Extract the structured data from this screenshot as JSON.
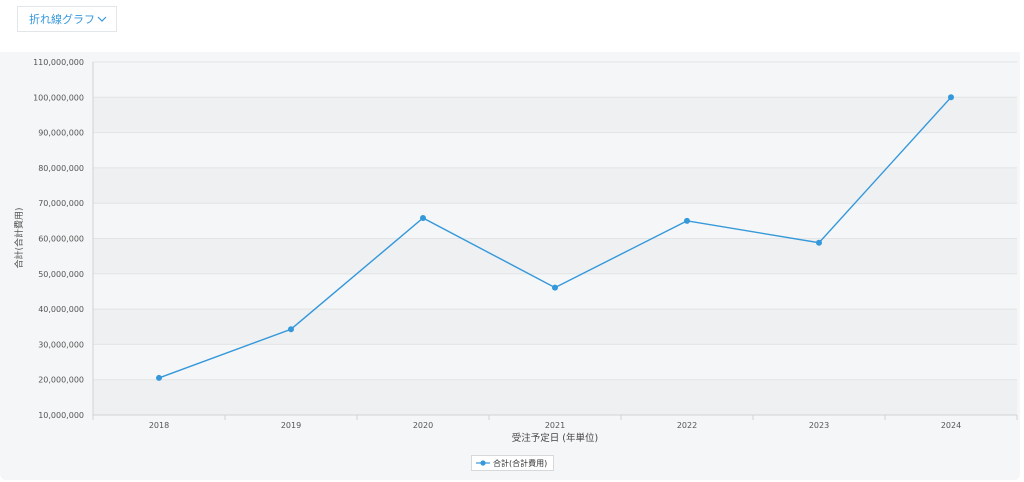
{
  "toolbar": {
    "chart_type_label": "折れ線グラフ"
  },
  "colors": {
    "accent": "#3498db",
    "band": "#eef0f2",
    "panel": "#f5f6f7"
  },
  "chart_data": {
    "type": "line",
    "categories": [
      "2018",
      "2019",
      "2020",
      "2021",
      "2022",
      "2023",
      "2024"
    ],
    "series": [
      {
        "name": "合計(合計費用)",
        "values": [
          20500000,
          34300000,
          65800000,
          46100000,
          65000000,
          58800000,
          100000000
        ]
      }
    ],
    "xlabel": "受注予定日 (年単位)",
    "ylabel": "合計(合計費用)",
    "ylim": [
      10000000,
      110000000
    ],
    "yticks": [
      10000000,
      20000000,
      30000000,
      40000000,
      50000000,
      60000000,
      70000000,
      80000000,
      90000000,
      100000000,
      110000000
    ],
    "ytick_labels": [
      "10,000,000",
      "20,000,000",
      "30,000,000",
      "40,000,000",
      "50,000,000",
      "60,000,000",
      "70,000,000",
      "80,000,000",
      "90,000,000",
      "100,000,000",
      "110,000,000"
    ],
    "grid": true,
    "legend": "bottom-center"
  }
}
